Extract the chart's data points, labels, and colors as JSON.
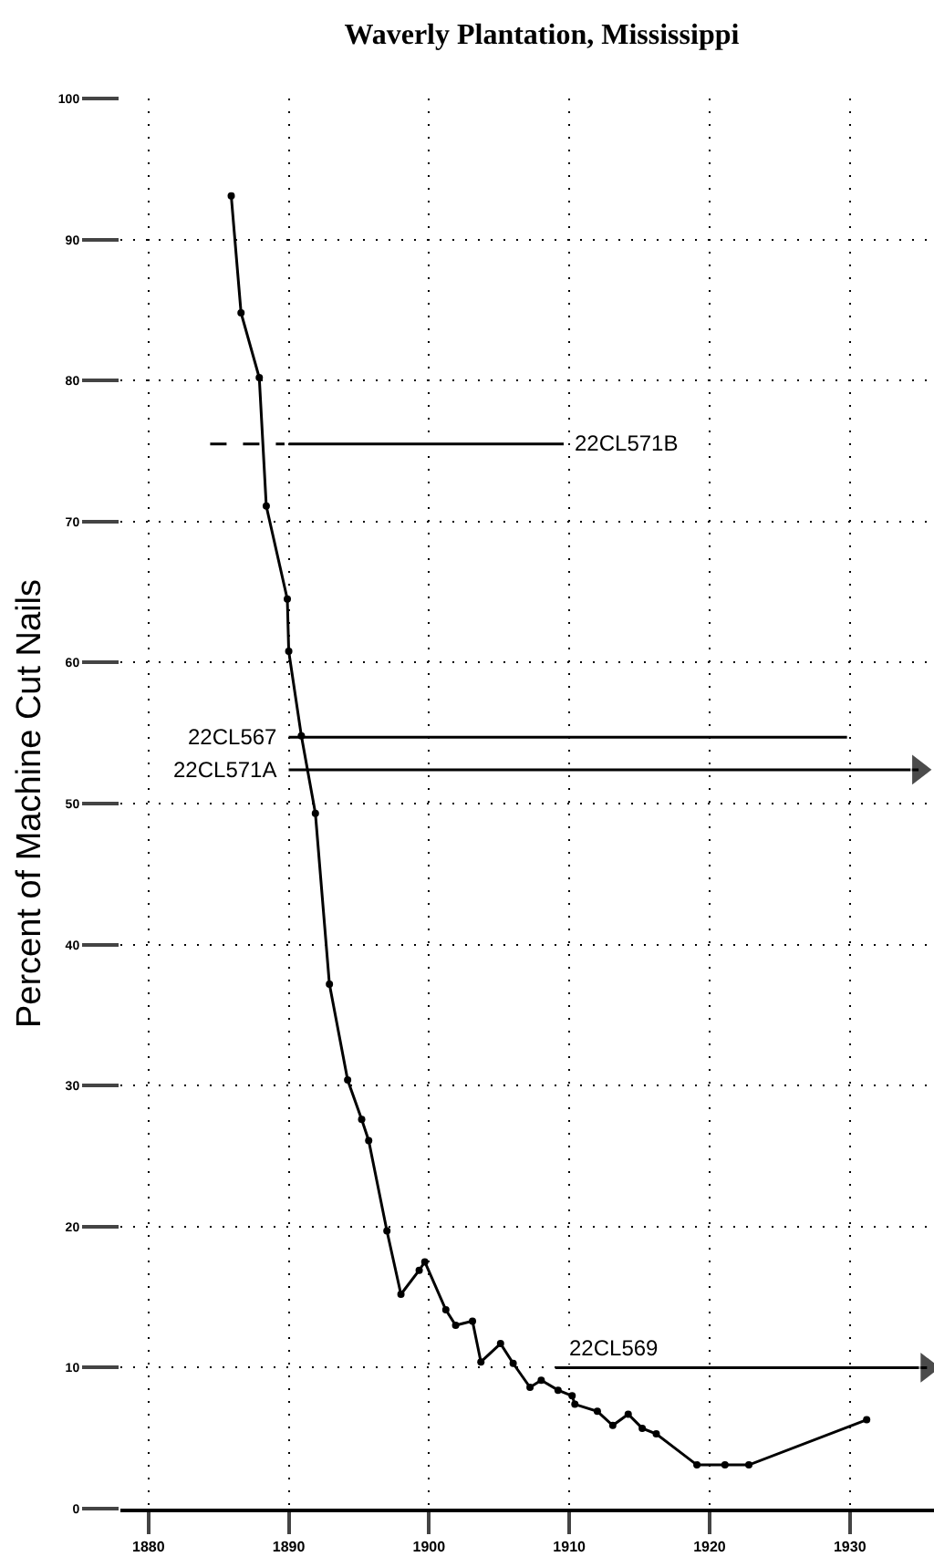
{
  "chart_data": {
    "type": "line",
    "title": "Waverly Plantation, Mississippi",
    "ylabel": "Percent of Machine Cut Nails",
    "xlim": [
      1878,
      1936
    ],
    "xticks": [
      1880,
      1890,
      1900,
      1910,
      1920,
      1930
    ],
    "ylim": [
      0,
      100
    ],
    "yticks": [
      0,
      10,
      20,
      30,
      40,
      50,
      60,
      70,
      80,
      90,
      100
    ],
    "grid": true,
    "legend": false,
    "series": [
      {
        "color": "#000000",
        "marker": "circle",
        "line_style": "solid",
        "x": [
          1885.9,
          1886.6,
          1887.9,
          1888.4,
          1889.9,
          1890.0,
          1890.9,
          1891.9,
          1892.9,
          1894.2,
          1895.2,
          1895.7,
          1897.0,
          1898.0,
          1899.3,
          1899.7,
          1901.2,
          1901.9,
          1903.1,
          1903.7,
          1905.1,
          1906.0,
          1907.2,
          1908.0,
          1909.2,
          1910.2,
          1910.4,
          1912.0,
          1913.1,
          1914.2,
          1915.2,
          1916.2,
          1919.1,
          1921.1,
          1922.8,
          1931.2
        ],
        "values": [
          93.1,
          84.8,
          80.2,
          71.1,
          64.5,
          60.8,
          54.8,
          49.3,
          37.2,
          30.4,
          27.6,
          26.1,
          19.7,
          15.2,
          16.9,
          17.5,
          14.1,
          13.0,
          13.3,
          10.4,
          11.7,
          10.3,
          8.6,
          9.1,
          8.4,
          8.0,
          7.4,
          6.9,
          5.9,
          6.7,
          5.7,
          5.3,
          3.1,
          3.1,
          3.1,
          6.3
        ]
      },
      {
        "color": "#000000",
        "marker": "none",
        "line_style": "dashed",
        "x": [
          1884.4,
          1889.7
        ],
        "values": [
          75.5,
          75.5
        ]
      },
      {
        "name": "22CL571B",
        "color": "#000000",
        "marker": "none",
        "line_style": "solid",
        "x": [
          1890.0,
          1909.6
        ],
        "values": [
          75.5,
          75.5
        ]
      },
      {
        "name": "22CL567",
        "color": "#000000",
        "marker": "none",
        "line_style": "solid",
        "x": [
          1890.0,
          1929.8
        ],
        "values": [
          54.7,
          54.7
        ]
      },
      {
        "name": "22CL571A",
        "color": "#000000",
        "marker": "triangle",
        "line_style": "solid",
        "x": [
          1890.0,
          1934.9
        ],
        "values": [
          52.4,
          52.4
        ]
      },
      {
        "name": "22CL569",
        "color": "#000000",
        "marker": "triangle",
        "line_style": "solid",
        "x": [
          1909.0,
          1935.5
        ],
        "values": [
          10.0,
          10.0
        ]
      }
    ]
  }
}
